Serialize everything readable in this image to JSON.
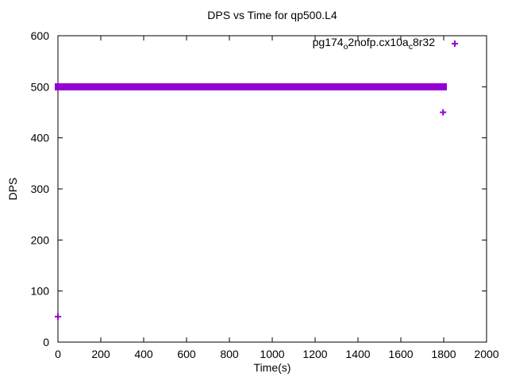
{
  "chart_data": {
    "type": "scatter",
    "title": "DPS vs Time for qp500.L4",
    "xlabel": "Time(s)",
    "ylabel": "DPS",
    "xlim": [
      0,
      2000
    ],
    "ylim": [
      0,
      600
    ],
    "xticks": [
      0,
      200,
      400,
      600,
      800,
      1000,
      1200,
      1400,
      1600,
      1800,
      2000
    ],
    "yticks": [
      0,
      100,
      200,
      300,
      400,
      500,
      600
    ],
    "grid": false,
    "background_color": "#ffffff",
    "axis_color": "#000000",
    "legend_position": "top-right-inside",
    "series": [
      {
        "name": "pg174_o2nofp.cx10a_c8r32",
        "label_segments": [
          {
            "text": "pg174"
          },
          {
            "text": "o",
            "subscript": true
          },
          {
            "text": "2nofp.cx10a"
          },
          {
            "text": "c",
            "subscript": true
          },
          {
            "text": "8r32"
          }
        ],
        "marker": "plus",
        "color": "#9400d3",
        "band": {
          "x_start": 0,
          "x_end": 1800,
          "y_center": 500,
          "y_low": 495,
          "y_high": 502
        },
        "points": [
          [
            0,
            50
          ],
          [
            1797,
            450
          ],
          [
            1800,
            500
          ]
        ]
      }
    ]
  }
}
